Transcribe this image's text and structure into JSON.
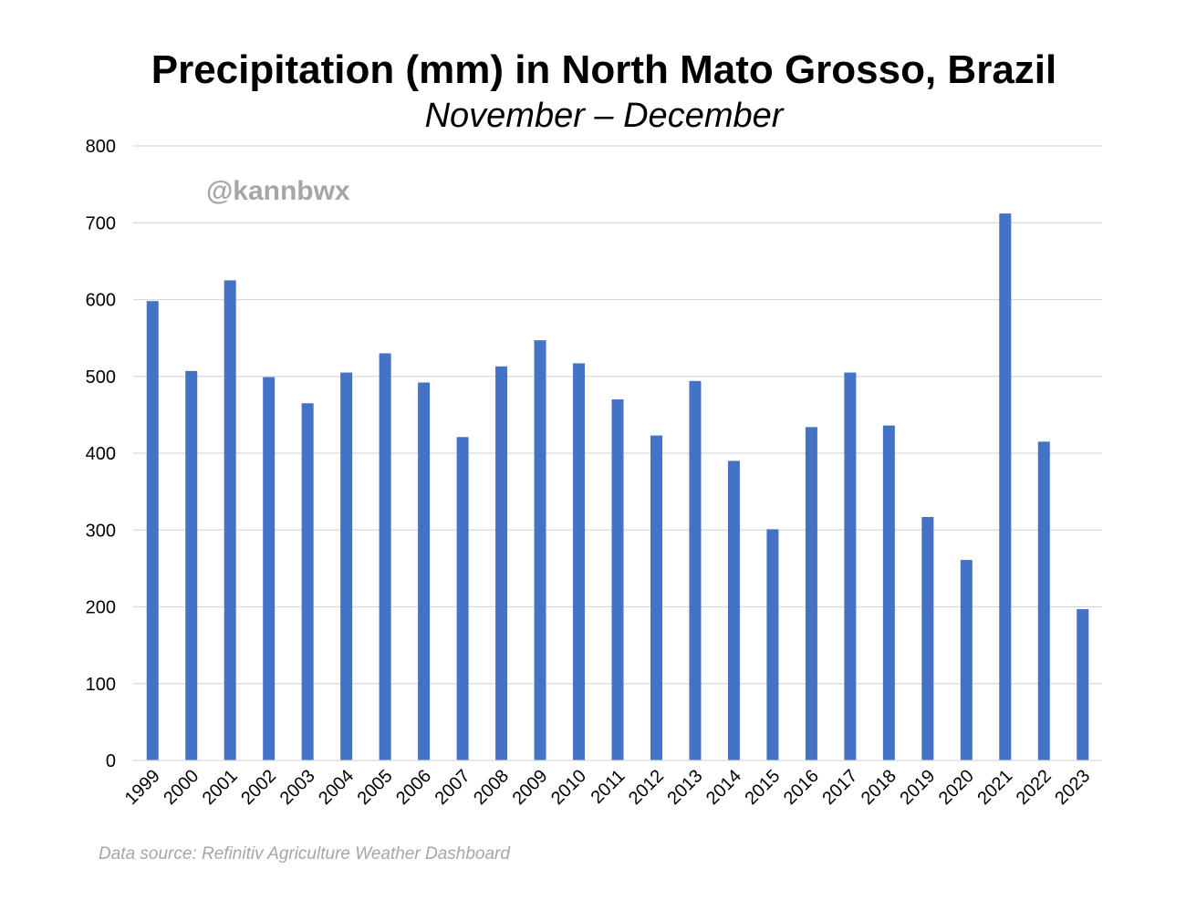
{
  "chart_data": {
    "type": "bar",
    "title": "Precipitation (mm) in North Mato Grosso, Brazil",
    "subtitle": "November – December",
    "watermark": "@kannbwx",
    "source": "Data source: Refinitiv Agriculture Weather Dashboard",
    "xlabel": "",
    "ylabel": "",
    "ylim": [
      0,
      800
    ],
    "yticks": [
      "0",
      "100",
      "200",
      "300",
      "400",
      "500",
      "600",
      "700",
      "800"
    ],
    "grid": true,
    "legend": "none",
    "bar_color": "#4472c4",
    "grid_color": "#d9d9d9",
    "categories": [
      "1999",
      "2000",
      "2001",
      "2002",
      "2003",
      "2004",
      "2005",
      "2006",
      "2007",
      "2008",
      "2009",
      "2010",
      "2011",
      "2012",
      "2013",
      "2014",
      "2015",
      "2016",
      "2017",
      "2018",
      "2019",
      "2020",
      "2021",
      "2022",
      "2023"
    ],
    "values": [
      598,
      507,
      625,
      499,
      465,
      505,
      530,
      492,
      421,
      513,
      547,
      517,
      470,
      423,
      494,
      390,
      301,
      434,
      505,
      436,
      317,
      261,
      712,
      415,
      197
    ]
  }
}
